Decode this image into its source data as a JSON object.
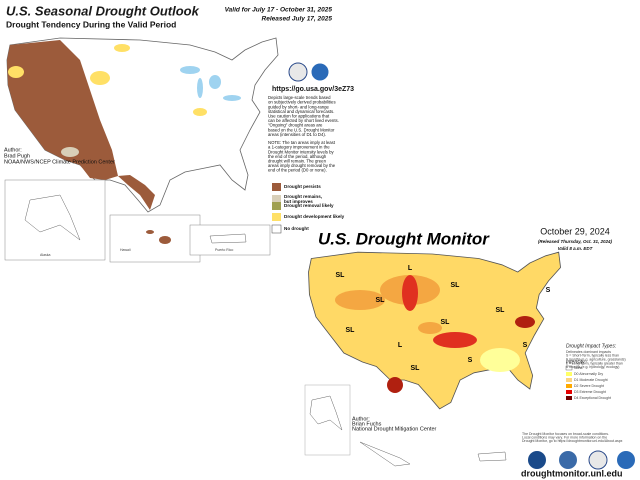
{
  "outlook": {
    "title": "U.S. Seasonal Drought Outlook",
    "subtitle": "Drought Tendency During the Valid Period",
    "valid": "Valid for July 17 - October 31, 2025",
    "released": "Released July 17, 2025",
    "url": "https://go.usa.gov/3eZ73",
    "description": [
      "Depicts large-scale trends based",
      "on subjectively derived probabilities",
      "guided by short- and long-range",
      "statistical and dynamical forecasts.",
      "Use caution for applications that",
      "can be affected by short lived events.",
      "\"Ongoing\" drought areas are",
      "based on the U.S. Drought Monitor",
      "areas (intensities of D1 to D4)."
    ],
    "note": [
      "NOTE: The tan areas imply at least",
      "a 1-category improvement in the",
      "Drought Monitor intensity levels by",
      "the end of the period, although",
      "drought will remain. The green",
      "areas imply drought removal by the",
      "end of the period (D0 or none)."
    ],
    "author": [
      "Author:",
      "Brad Pugh",
      "NOAA/NWS/NCEP Climate Prediction Center"
    ],
    "legend": [
      "Drought persists",
      "Drought remains,",
      "but improves",
      "Drought removal likely",
      "Drought development likely",
      "No drought"
    ],
    "insets": [
      "Alaska",
      "Hawaii",
      "Puerto Rico"
    ]
  },
  "monitor": {
    "title": "U.S. Drought Monitor",
    "date": "October 29, 2024",
    "released": "(Released Thursday, Oct. 31, 2024)",
    "valid": "Valid 8 a.m. EDT",
    "impact_title": "Drought Impact Types:",
    "impact_lines": [
      "Delineates dominant impacts",
      "S = Short-Term, typically less than",
      "6 months (e.g. agriculture, grasslands)",
      "L = Long-Term, typically greater than",
      "6 months (e.g. hydrology, ecology)"
    ],
    "intensity_title": "Intensity:",
    "intensity": [
      "None",
      "D0 Abnormally Dry",
      "D1 Moderate Drought",
      "D2 Severe Drought",
      "D3 Extreme Drought",
      "D4 Exceptional Drought"
    ],
    "author": [
      "Author:",
      "Brian Fuchs",
      "National Drought Mitigation Center"
    ],
    "footnote": [
      "The Drought Monitor focuses on broad-scale conditions.",
      "Local conditions may vary. For more information on the",
      "Drought Monitor, go to https://droughtmonitor.unl.edu/About.aspx"
    ],
    "site": "droughtmonitor.unl.edu",
    "map_labels": [
      "SL",
      "L",
      "SL",
      "SL",
      "SL",
      "L",
      "SL",
      "S",
      "SL",
      "S",
      "S",
      "SL"
    ]
  }
}
